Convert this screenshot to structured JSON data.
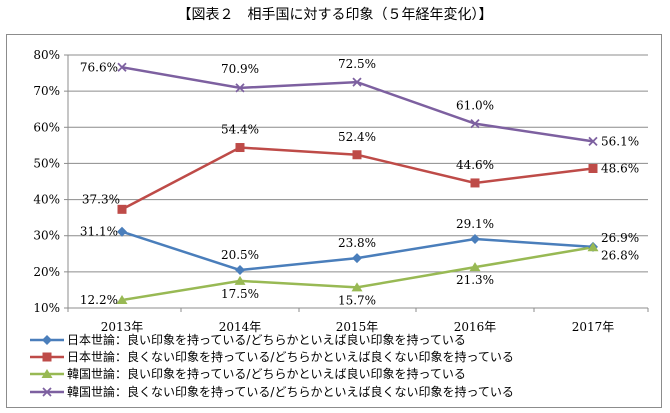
{
  "chart_data": {
    "type": "line",
    "title": "【図表２　相手国に対する印象（５年経年変化）】",
    "categories": [
      "2013年",
      "2014年",
      "2015年",
      "2016年",
      "2017年"
    ],
    "ylim": [
      10,
      80
    ],
    "yticks": [
      "10%",
      "20%",
      "30%",
      "40%",
      "50%",
      "60%",
      "70%",
      "80%"
    ],
    "grid": true,
    "legend_position": "bottom",
    "series": [
      {
        "name": "日本世論：良い印象を持っている/どちらかといえば良い印象を持っている",
        "values": [
          31.1,
          20.5,
          23.8,
          29.1,
          26.9
        ],
        "labels": [
          "31.1%",
          "20.5%",
          "23.8%",
          "29.1%",
          "26.9%"
        ],
        "color": "#4a7ebb",
        "marker": "diamond"
      },
      {
        "name": "日本世論：良くない印象を持っている/どちらかといえば良くない印象を持っている",
        "values": [
          37.3,
          54.4,
          52.4,
          44.6,
          48.6
        ],
        "labels": [
          "37.3%",
          "54.4%",
          "52.4%",
          "44.6%",
          "48.6%"
        ],
        "color": "#be4b48",
        "marker": "square"
      },
      {
        "name": "韓国世論：良い印象を持っている/どちらかといえば良い印象を持っている",
        "values": [
          12.2,
          17.5,
          15.7,
          21.3,
          26.8
        ],
        "labels": [
          "12.2%",
          "17.5%",
          "15.7%",
          "21.3%",
          "26.8%"
        ],
        "color": "#98b954",
        "marker": "triangle"
      },
      {
        "name": "韓国世論：良くない印象を持っている/どちらかといえば良くない印象を持っている",
        "values": [
          76.6,
          70.9,
          72.5,
          61.0,
          56.1
        ],
        "labels": [
          "76.6%",
          "70.9%",
          "72.5%",
          "61.0%",
          "56.1%"
        ],
        "color": "#7d60a0",
        "marker": "x"
      }
    ]
  }
}
